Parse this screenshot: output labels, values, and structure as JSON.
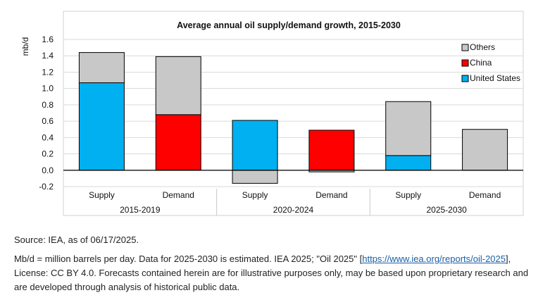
{
  "chart_data": {
    "type": "bar",
    "stacked": true,
    "title": "Average annual oil supply/demand growth, 2015-2030",
    "ylabel": "mb/d",
    "ylim": [
      -0.2,
      1.6
    ],
    "yticks": [
      "1.6",
      "1.4",
      "1.2",
      "1.0",
      "0.8",
      "0.6",
      "0.4",
      "0.2",
      "0.0",
      "-0.2"
    ],
    "ytick_values": [
      1.6,
      1.4,
      1.2,
      1.0,
      0.8,
      0.6,
      0.4,
      0.2,
      0.0,
      -0.2
    ],
    "grid": true,
    "legend_placement": "top-right",
    "categories": [
      "Supply",
      "Demand",
      "Supply",
      "Demand",
      "Supply",
      "Demand"
    ],
    "groups": [
      {
        "label": "2015-2019",
        "span": [
          0,
          1
        ]
      },
      {
        "label": "2020-2024",
        "span": [
          2,
          3
        ]
      },
      {
        "label": "2025-2030",
        "span": [
          4,
          5
        ]
      }
    ],
    "series": [
      {
        "name": "United States",
        "color": "#00b0f0",
        "values": [
          1.07,
          0,
          0.61,
          0,
          0.18,
          0
        ]
      },
      {
        "name": "China",
        "color": "#ff0000",
        "values": [
          0,
          0.68,
          0,
          0.49,
          0,
          0
        ]
      },
      {
        "name": "Others",
        "color": "#c8c8c8",
        "values": [
          0.37,
          0.71,
          -0.16,
          -0.02,
          0.66,
          0.5
        ]
      }
    ],
    "legend_order": [
      "Others",
      "China",
      "United States"
    ]
  },
  "notes": {
    "source": "Source: IEA, as of 06/17/2025.",
    "line2_prefix": "Mb/d = million barrels per day. Data for 2025-2030 is estimated. IEA 2025; \"Oil 2025\" [",
    "link_text": "https://www.iea.org/reports/oil-2025",
    "line2_suffix": "], License: CC BY 4.0. Forecasts contained herein are for illustrative purposes only, may be based upon proprietary research and are developed through analysis of historical public data."
  }
}
